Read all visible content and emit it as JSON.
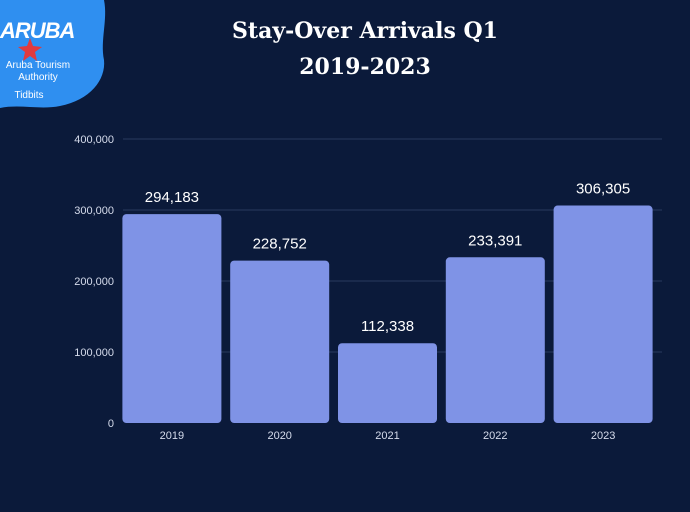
{
  "logo": {
    "brand": "ARUBA",
    "org": "Aruba Tourism Authority",
    "tag": "Tidbits",
    "icon": "star-icon"
  },
  "colors": {
    "background": "#0b1a3a",
    "bar": "#7f93e6",
    "logo_blue": "#2f8ff0",
    "logo_star": "#e03a3e"
  },
  "chart_data": {
    "type": "bar",
    "title_line1": "Stay-Over Arrivals Q1",
    "title_line2": "2019-2023",
    "categories": [
      "2019",
      "2020",
      "2021",
      "2022",
      "2023"
    ],
    "values": [
      294183,
      228752,
      112338,
      233391,
      306305
    ],
    "value_labels": [
      "294,183",
      "228,752",
      "112,338",
      "233,391",
      "306,305"
    ],
    "ylim": [
      0,
      400000
    ],
    "yticks": [
      0,
      100000,
      200000,
      300000,
      400000
    ],
    "ytick_labels": [
      "0",
      "100,000",
      "200,000",
      "300,000",
      "400,000"
    ],
    "grid": true,
    "xlabel": "",
    "ylabel": ""
  }
}
